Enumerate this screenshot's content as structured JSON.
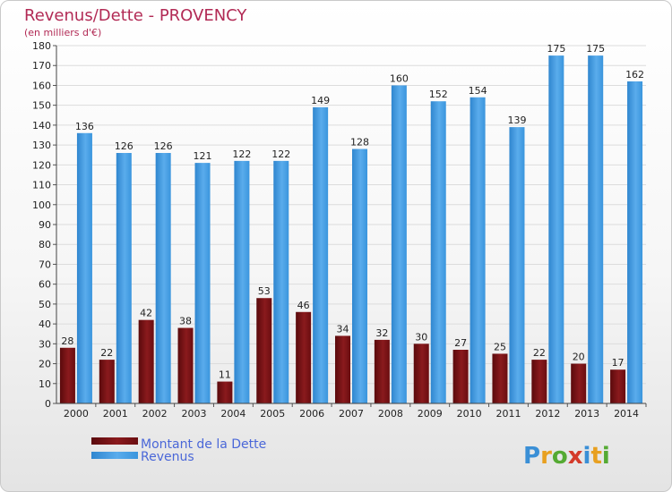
{
  "chart_data": {
    "type": "bar",
    "title": "Revenus/Dette - PROVENCY",
    "subtitle": "(en milliers d'€)",
    "categories": [
      "2000",
      "2001",
      "2002",
      "2003",
      "2004",
      "2005",
      "2006",
      "2007",
      "2008",
      "2009",
      "2010",
      "2011",
      "2012",
      "2013",
      "2014"
    ],
    "series": [
      {
        "name": "Montant de la Dette",
        "color": "#7a1114",
        "values": [
          28,
          22,
          42,
          38,
          11,
          53,
          46,
          34,
          32,
          30,
          27,
          25,
          22,
          20,
          17
        ]
      },
      {
        "name": "Revenus",
        "color": "#3a95dd",
        "values": [
          136,
          126,
          126,
          121,
          122,
          122,
          149,
          128,
          160,
          152,
          154,
          139,
          175,
          175,
          162
        ]
      }
    ],
    "ylim": [
      0,
      180
    ],
    "yticks": [
      0,
      10,
      20,
      30,
      40,
      50,
      60,
      70,
      80,
      90,
      100,
      110,
      120,
      130,
      140,
      150,
      160,
      170,
      180
    ],
    "grid": true,
    "legend_position": "bottom-left"
  },
  "brand": {
    "logo_text": "Proxiti"
  }
}
